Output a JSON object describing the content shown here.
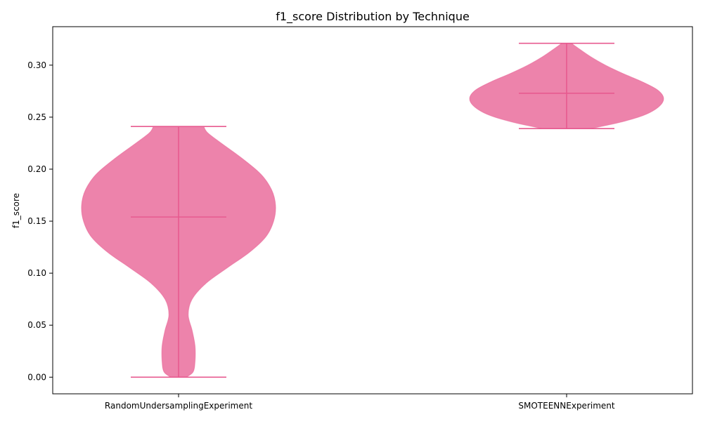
{
  "chart_data": {
    "type": "violin",
    "title": "f1_score Distribution by Technique",
    "xlabel": "",
    "ylabel": "f1_score",
    "ylim": [
      -0.016,
      0.337
    ],
    "yticks": [
      0.0,
      0.05,
      0.1,
      0.15,
      0.2,
      0.25,
      0.3
    ],
    "ytick_labels": [
      "0.00",
      "0.05",
      "0.10",
      "0.15",
      "0.20",
      "0.25",
      "0.30"
    ],
    "grid": false,
    "color": "#e75a8f",
    "categories": [
      "RandomUndersamplingExperiment",
      "SMOTEENNExperiment"
    ],
    "series": [
      {
        "category": "RandomUndersamplingExperiment",
        "min": 0.0,
        "max": 0.241,
        "mean": 0.154,
        "density_profile": [
          [
            0.0,
            0.08
          ],
          [
            0.005,
            0.15
          ],
          [
            0.015,
            0.17
          ],
          [
            0.03,
            0.17
          ],
          [
            0.045,
            0.14
          ],
          [
            0.06,
            0.1
          ],
          [
            0.075,
            0.14
          ],
          [
            0.09,
            0.28
          ],
          [
            0.105,
            0.5
          ],
          [
            0.12,
            0.73
          ],
          [
            0.135,
            0.9
          ],
          [
            0.15,
            0.98
          ],
          [
            0.165,
            1.0
          ],
          [
            0.18,
            0.96
          ],
          [
            0.195,
            0.85
          ],
          [
            0.21,
            0.66
          ],
          [
            0.225,
            0.44
          ],
          [
            0.235,
            0.3
          ],
          [
            0.241,
            0.26
          ]
        ]
      },
      {
        "category": "SMOTEENNExperiment",
        "min": 0.239,
        "max": 0.321,
        "mean": 0.273,
        "density_profile": [
          [
            0.239,
            0.25
          ],
          [
            0.245,
            0.55
          ],
          [
            0.252,
            0.8
          ],
          [
            0.26,
            0.95
          ],
          [
            0.268,
            1.0
          ],
          [
            0.276,
            0.94
          ],
          [
            0.284,
            0.78
          ],
          [
            0.292,
            0.58
          ],
          [
            0.3,
            0.4
          ],
          [
            0.308,
            0.25
          ],
          [
            0.315,
            0.14
          ],
          [
            0.321,
            0.05
          ]
        ]
      }
    ]
  }
}
